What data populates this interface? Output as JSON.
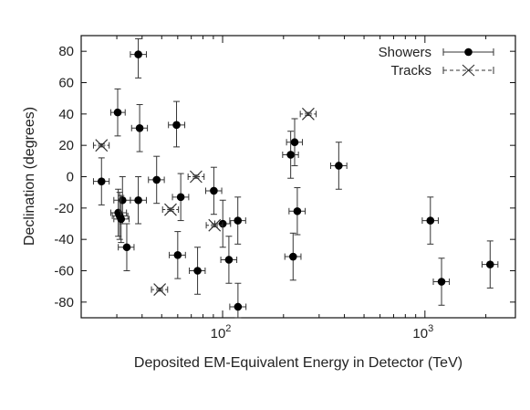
{
  "chart_data": {
    "type": "scatter",
    "xscale": "log",
    "xlim": [
      20,
      2800
    ],
    "ylim": [
      -90,
      90
    ],
    "xlabel": "Deposited EM-Equivalent Energy in Detector (TeV)",
    "ylabel": "Declination (degrees)",
    "ytick_labels": [
      "-80",
      "-60",
      "-40",
      "-20",
      "0",
      "20",
      "40",
      "60",
      "80"
    ],
    "ytick_values": [
      -80,
      -60,
      -40,
      -20,
      0,
      20,
      40,
      60,
      80
    ],
    "xticks": [
      {
        "value": 100,
        "base": "10",
        "exp": "2"
      },
      {
        "value": 1000,
        "base": "10",
        "exp": "3"
      }
    ],
    "legend": {
      "position": "top-right",
      "entries": [
        "Showers",
        "Tracks"
      ]
    },
    "series": [
      {
        "name": "Showers",
        "marker": "filled-circle",
        "points": [
          {
            "x": 38.3,
            "y": 78,
            "xlo": 35,
            "xhi": 42,
            "ylo": 63,
            "yhi": 88
          },
          {
            "x": 30.3,
            "y": 41,
            "xlo": 28,
            "xhi": 33,
            "ylo": 26,
            "yhi": 56
          },
          {
            "x": 38.9,
            "y": 31,
            "xlo": 35.5,
            "xhi": 42.5,
            "ylo": 16,
            "yhi": 46
          },
          {
            "x": 59.2,
            "y": 33,
            "xlo": 54,
            "xhi": 65,
            "ylo": 19,
            "yhi": 48
          },
          {
            "x": 25.2,
            "y": -3,
            "xlo": 23,
            "xhi": 27.5,
            "ylo": -18,
            "yhi": 12
          },
          {
            "x": 47.2,
            "y": -2,
            "xlo": 43,
            "xhi": 51.5,
            "ylo": -17,
            "yhi": 13
          },
          {
            "x": 32.0,
            "y": -15,
            "xlo": 29,
            "xhi": 35,
            "ylo": -30,
            "yhi": 0
          },
          {
            "x": 38.3,
            "y": -15,
            "xlo": 35,
            "xhi": 42,
            "ylo": -30,
            "yhi": 0
          },
          {
            "x": 62.1,
            "y": -13,
            "xlo": 56.5,
            "xhi": 68,
            "ylo": -28,
            "yhi": 2
          },
          {
            "x": 90.5,
            "y": -9,
            "xlo": 82.5,
            "xhi": 99,
            "ylo": -24,
            "yhi": 6
          },
          {
            "x": 30.5,
            "y": -23,
            "xlo": 28,
            "xhi": 33.5,
            "ylo": -38,
            "yhi": -8
          },
          {
            "x": 31.0,
            "y": -25,
            "xlo": 28.5,
            "xhi": 34,
            "ylo": -40,
            "yhi": -10
          },
          {
            "x": 31.5,
            "y": -27,
            "xlo": 29,
            "xhi": 34.5,
            "ylo": -42,
            "yhi": -12
          },
          {
            "x": 100.2,
            "y": -30,
            "xlo": 91.5,
            "xhi": 109.5,
            "ylo": -45,
            "yhi": -15
          },
          {
            "x": 118.9,
            "y": -28,
            "xlo": 108.5,
            "xhi": 130,
            "ylo": -43,
            "yhi": -13
          },
          {
            "x": 33.6,
            "y": -45,
            "xlo": 30.5,
            "xhi": 36.5,
            "ylo": -60,
            "yhi": -30
          },
          {
            "x": 60.0,
            "y": -50,
            "xlo": 54.5,
            "xhi": 65.5,
            "ylo": -65,
            "yhi": -35
          },
          {
            "x": 75.2,
            "y": -60,
            "xlo": 68.5,
            "xhi": 82,
            "ylo": -75,
            "yhi": -45
          },
          {
            "x": 107.4,
            "y": -53,
            "xlo": 98,
            "xhi": 117.5,
            "ylo": -68,
            "yhi": -38
          },
          {
            "x": 119.1,
            "y": -83,
            "xlo": 108.5,
            "xhi": 130.5,
            "ylo": -90,
            "yhi": -68
          },
          {
            "x": 217,
            "y": 14,
            "xlo": 198,
            "xhi": 237,
            "ylo": -1,
            "yhi": 29
          },
          {
            "x": 227,
            "y": 22,
            "xlo": 207,
            "xhi": 248,
            "ylo": 7,
            "yhi": 37
          },
          {
            "x": 375,
            "y": 7,
            "xlo": 342,
            "xhi": 411,
            "ylo": -8,
            "yhi": 22
          },
          {
            "x": 234,
            "y": -22,
            "xlo": 213,
            "xhi": 256,
            "ylo": -37,
            "yhi": -7
          },
          {
            "x": 223,
            "y": -51,
            "xlo": 203,
            "xhi": 244,
            "ylo": -66,
            "yhi": -36
          },
          {
            "x": 1064,
            "y": -28,
            "xlo": 970,
            "xhi": 1164,
            "ylo": -43,
            "yhi": -13
          },
          {
            "x": 1208,
            "y": -67,
            "xlo": 1100,
            "xhi": 1320,
            "ylo": -82,
            "yhi": -52
          },
          {
            "x": 2100,
            "y": -56,
            "xlo": 1915,
            "xhi": 2295,
            "ylo": -71,
            "yhi": -41
          }
        ]
      },
      {
        "name": "Tracks",
        "marker": "x",
        "points": [
          {
            "x": 25.2,
            "y": 20,
            "xlo": 23,
            "xhi": 27.5,
            "ylo": 19,
            "yhi": 21
          },
          {
            "x": 55.3,
            "y": -21,
            "xlo": 50.5,
            "xhi": 60.5,
            "ylo": -22,
            "yhi": -20
          },
          {
            "x": 73.9,
            "y": 0,
            "xlo": 67.5,
            "xhi": 81,
            "ylo": -1,
            "yhi": 1
          },
          {
            "x": 48.9,
            "y": -72,
            "xlo": 44.5,
            "xhi": 53.5,
            "ylo": -73,
            "yhi": -71
          },
          {
            "x": 91.3,
            "y": -31,
            "xlo": 83,
            "xhi": 100,
            "ylo": -32,
            "yhi": -30
          },
          {
            "x": 265,
            "y": 40,
            "xlo": 242,
            "xhi": 290,
            "ylo": 39,
            "yhi": 41
          }
        ]
      }
    ]
  }
}
